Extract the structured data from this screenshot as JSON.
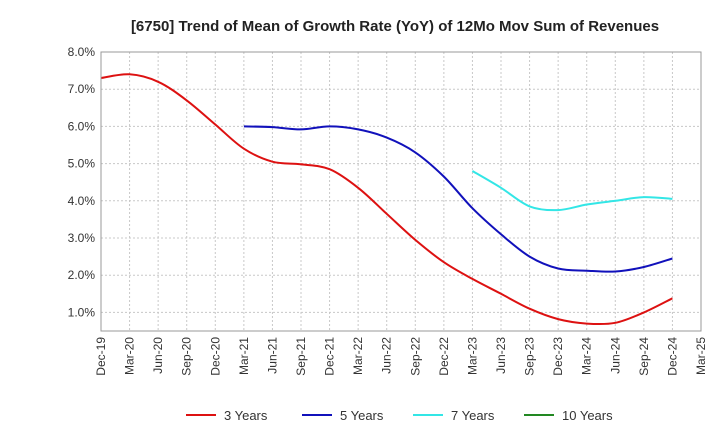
{
  "chart_data": {
    "type": "line",
    "title": "[6750]  Trend of Mean of Growth Rate (YoY) of 12Mo Mov Sum of Revenues",
    "xlabel": "",
    "ylabel": "",
    "categories": [
      "Dec-19",
      "Mar-20",
      "Jun-20",
      "Sep-20",
      "Dec-20",
      "Mar-21",
      "Jun-21",
      "Sep-21",
      "Dec-21",
      "Mar-22",
      "Jun-22",
      "Sep-22",
      "Dec-22",
      "Mar-23",
      "Jun-23",
      "Sep-23",
      "Dec-23",
      "Mar-24",
      "Jun-24",
      "Sep-24",
      "Dec-24",
      "Mar-25"
    ],
    "y_tick_labels": [
      "1.0%",
      "2.0%",
      "3.0%",
      "4.0%",
      "5.0%",
      "6.0%",
      "7.0%",
      "8.0%"
    ],
    "ylim": [
      0.5,
      8.0
    ],
    "grid": true,
    "legend_position": "bottom",
    "series": [
      {
        "name": "3 Years",
        "color": "#dd1111",
        "values": [
          7.3,
          7.4,
          7.2,
          6.7,
          6.05,
          5.4,
          5.05,
          4.98,
          4.85,
          4.35,
          3.65,
          2.95,
          2.35,
          1.9,
          1.5,
          1.1,
          0.82,
          0.7,
          0.72,
          1.0,
          1.38,
          null
        ]
      },
      {
        "name": "5 Years",
        "color": "#1111bb",
        "values": [
          null,
          null,
          null,
          null,
          null,
          6.0,
          5.98,
          5.92,
          6.0,
          5.92,
          5.7,
          5.3,
          4.65,
          3.8,
          3.1,
          2.5,
          2.18,
          2.12,
          2.1,
          2.22,
          2.45,
          null
        ]
      },
      {
        "name": "7 Years",
        "color": "#33e6e6",
        "values": [
          null,
          null,
          null,
          null,
          null,
          null,
          null,
          null,
          null,
          null,
          null,
          null,
          null,
          4.8,
          4.35,
          3.85,
          3.75,
          3.9,
          4.0,
          4.1,
          4.05,
          null
        ]
      },
      {
        "name": "10 Years",
        "color": "#228822",
        "values": [
          null,
          null,
          null,
          null,
          null,
          null,
          null,
          null,
          null,
          null,
          null,
          null,
          null,
          null,
          null,
          null,
          null,
          null,
          null,
          null,
          null,
          null
        ]
      }
    ]
  }
}
